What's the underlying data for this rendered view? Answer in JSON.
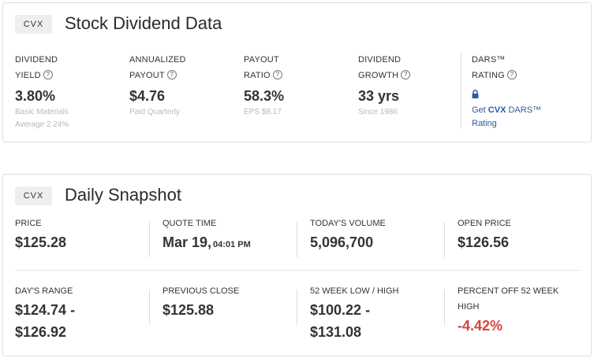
{
  "dividend_card": {
    "ticker": "CVX",
    "title": "Stock Dividend Data",
    "metrics": [
      {
        "label_line1": "DIVIDEND",
        "label_line2": "YIELD",
        "value": "3.80%",
        "sub1": "Basic Materials",
        "sub2": "Average 2.24%"
      },
      {
        "label_line1": "ANNUALIZED",
        "label_line2": "PAYOUT",
        "value": "$4.76",
        "sub1": "Paid Quarterly"
      },
      {
        "label_line1": "PAYOUT",
        "label_line2": "RATIO",
        "value": "58.3%",
        "sub1": "EPS $8.17"
      },
      {
        "label_line1": "DIVIDEND",
        "label_line2": "GROWTH",
        "value": "33 yrs",
        "sub1": "Since 1986"
      }
    ],
    "dars": {
      "label_line1": "DARS™",
      "label_line2": "RATING",
      "icon": "lock-icon",
      "link_prefix": "Get ",
      "link_ticker": "CVX",
      "link_suffix": " DARS™",
      "link_line2": "Rating"
    },
    "help_glyph": "?"
  },
  "snapshot_card": {
    "ticker": "CVX",
    "title": "Daily Snapshot",
    "row1": [
      {
        "label": "PRICE",
        "value": "$125.28"
      },
      {
        "label": "QUOTE TIME",
        "value": "Mar 19,",
        "value_small": "04:01 PM"
      },
      {
        "label": "TODAY'S VOLUME",
        "value": "5,096,700"
      },
      {
        "label": "OPEN PRICE",
        "value": "$126.56"
      }
    ],
    "row2": [
      {
        "label": "DAY'S RANGE",
        "value_line1": "$124.74 -",
        "value_line2": "$126.92"
      },
      {
        "label": "PREVIOUS CLOSE",
        "value": "$125.88"
      },
      {
        "label": "52 WEEK LOW / HIGH",
        "value_line1": "$100.22 -",
        "value_line2": "$131.08"
      },
      {
        "label_line1": "PERCENT OFF 52 WEEK",
        "label_line2": "HIGH",
        "value": "-4.42%"
      }
    ]
  },
  "colors": {
    "negative": "#d9413f",
    "link": "#2c5aa0",
    "border": "#dedede"
  }
}
